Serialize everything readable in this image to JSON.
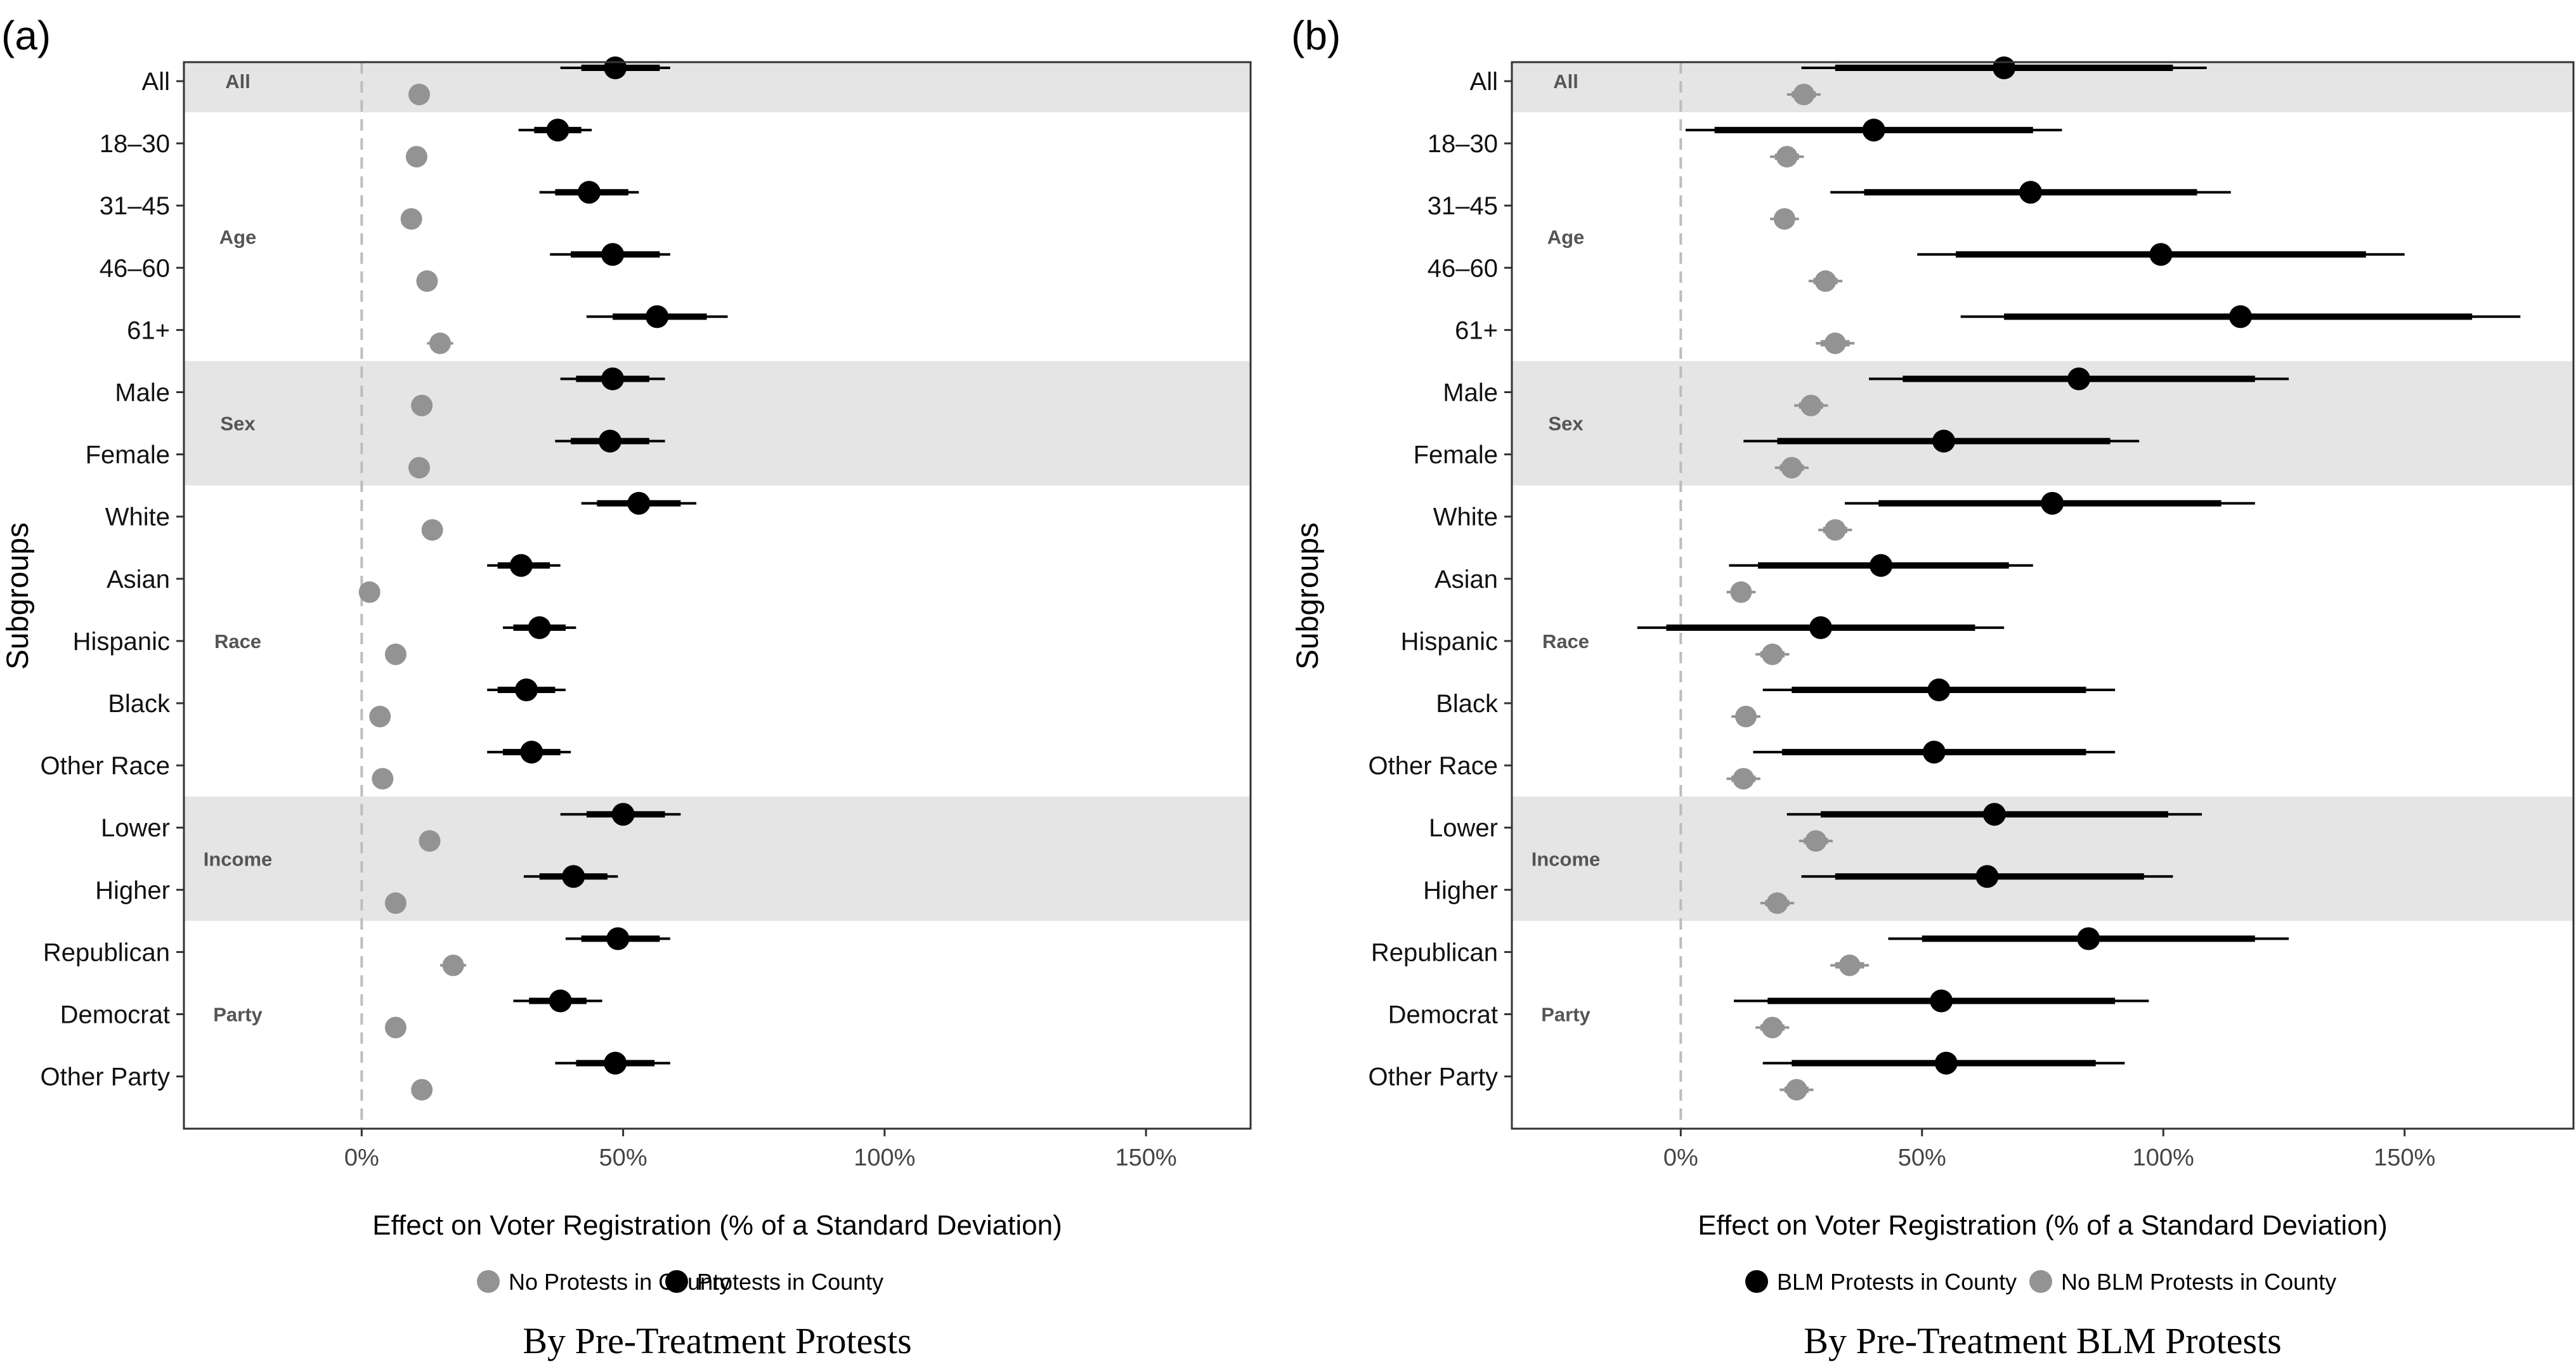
{
  "colors": {
    "protest": "#000000",
    "no_protest": "#939393",
    "band": "#e5e5e5",
    "zero_line": "#bdbdbd"
  },
  "categories": [
    "All",
    "18–30",
    "31–45",
    "46–60",
    "61+",
    "Male",
    "Female",
    "White",
    "Asian",
    "Hispanic",
    "Black",
    "Other Race",
    "Lower",
    "Higher",
    "Republican",
    "Democrat",
    "Other Party"
  ],
  "groups": [
    {
      "label": "All",
      "rows": [
        0,
        0
      ],
      "shaded": true
    },
    {
      "label": "Age",
      "rows": [
        1,
        4
      ],
      "shaded": false
    },
    {
      "label": "Sex",
      "rows": [
        5,
        6
      ],
      "shaded": true
    },
    {
      "label": "Race",
      "rows": [
        7,
        11
      ],
      "shaded": false
    },
    {
      "label": "Income",
      "rows": [
        12,
        13
      ],
      "shaded": true
    },
    {
      "label": "Party",
      "rows": [
        14,
        16
      ],
      "shaded": false
    }
  ],
  "chart_data": [
    {
      "type": "scatter",
      "panel_tag": "(a)",
      "subtitle": "By Pre-Treatment Protests",
      "xlabel": "Effect on Voter Registration (% of a Standard Deviation)",
      "ylabel": "Subgroups",
      "xlim": [
        -34,
        170
      ],
      "xticks": [
        0,
        50,
        100,
        150
      ],
      "xtick_labels": [
        "0%",
        "50%",
        "100%",
        "150%"
      ],
      "legend": [
        {
          "label": "No Protests in County",
          "series": "no_protest"
        },
        {
          "label": "Protests in County",
          "series": "protest"
        }
      ],
      "series": [
        {
          "key": "protest",
          "name": "Protests in County",
          "points": [
            {
              "est": 48.5,
              "ci90": [
                42,
                57
              ],
              "ci95": [
                38,
                59
              ]
            },
            {
              "est": 37.5,
              "ci90": [
                33,
                42
              ],
              "ci95": [
                30,
                44
              ]
            },
            {
              "est": 43.5,
              "ci90": [
                37,
                51
              ],
              "ci95": [
                34,
                53
              ]
            },
            {
              "est": 48,
              "ci90": [
                40,
                57
              ],
              "ci95": [
                36,
                59
              ]
            },
            {
              "est": 56.5,
              "ci90": [
                48,
                66
              ],
              "ci95": [
                43,
                70
              ]
            },
            {
              "est": 48,
              "ci90": [
                41,
                55
              ],
              "ci95": [
                38,
                58
              ]
            },
            {
              "est": 47.5,
              "ci90": [
                40,
                55
              ],
              "ci95": [
                37,
                58
              ]
            },
            {
              "est": 53,
              "ci90": [
                45,
                61
              ],
              "ci95": [
                42,
                64
              ]
            },
            {
              "est": 30.5,
              "ci90": [
                26,
                36
              ],
              "ci95": [
                24,
                38
              ]
            },
            {
              "est": 34,
              "ci90": [
                29,
                39
              ],
              "ci95": [
                27,
                41
              ]
            },
            {
              "est": 31.5,
              "ci90": [
                26,
                37
              ],
              "ci95": [
                24,
                39
              ]
            },
            {
              "est": 32.5,
              "ci90": [
                27,
                38
              ],
              "ci95": [
                24,
                40
              ]
            },
            {
              "est": 50,
              "ci90": [
                43,
                58
              ],
              "ci95": [
                38,
                61
              ]
            },
            {
              "est": 40.5,
              "ci90": [
                34,
                47
              ],
              "ci95": [
                31,
                49
              ]
            },
            {
              "est": 49,
              "ci90": [
                42,
                57
              ],
              "ci95": [
                39,
                59
              ]
            },
            {
              "est": 38,
              "ci90": [
                32,
                43
              ],
              "ci95": [
                29,
                46
              ]
            },
            {
              "est": 48.5,
              "ci90": [
                41,
                56
              ],
              "ci95": [
                37,
                59
              ]
            }
          ]
        },
        {
          "key": "no_protest",
          "name": "No Protests in County",
          "points": [
            {
              "est": 11,
              "ci90": [
                10,
                12
              ],
              "ci95": [
                9.5,
                12.5
              ]
            },
            {
              "est": 10.5,
              "ci90": [
                9.5,
                11.5
              ],
              "ci95": [
                9,
                12
              ]
            },
            {
              "est": 9.5,
              "ci90": [
                8.5,
                10.5
              ],
              "ci95": [
                8,
                11
              ]
            },
            {
              "est": 12.5,
              "ci90": [
                11.5,
                13.5
              ],
              "ci95": [
                11,
                14
              ]
            },
            {
              "est": 15,
              "ci90": [
                13.5,
                16.5
              ],
              "ci95": [
                12.5,
                17.5
              ]
            },
            {
              "est": 11.5,
              "ci90": [
                10.5,
                12.5
              ],
              "ci95": [
                10,
                13
              ]
            },
            {
              "est": 11,
              "ci90": [
                10,
                12
              ],
              "ci95": [
                9.5,
                12.5
              ]
            },
            {
              "est": 13.5,
              "ci90": [
                12.5,
                14.5
              ],
              "ci95": [
                12,
                15
              ]
            },
            {
              "est": 1.5,
              "ci90": [
                0.5,
                2.5
              ],
              "ci95": [
                0,
                3
              ]
            },
            {
              "est": 6.5,
              "ci90": [
                5.5,
                7.5
              ],
              "ci95": [
                5,
                8
              ]
            },
            {
              "est": 3.5,
              "ci90": [
                2.5,
                4.5
              ],
              "ci95": [
                2,
                5
              ]
            },
            {
              "est": 4,
              "ci90": [
                3,
                5
              ],
              "ci95": [
                2.5,
                5.5
              ]
            },
            {
              "est": 13,
              "ci90": [
                12,
                14
              ],
              "ci95": [
                11.5,
                14.5
              ]
            },
            {
              "est": 6.5,
              "ci90": [
                5.5,
                7.5
              ],
              "ci95": [
                5,
                8
              ]
            },
            {
              "est": 17.5,
              "ci90": [
                16,
                19
              ],
              "ci95": [
                15,
                20
              ]
            },
            {
              "est": 6.5,
              "ci90": [
                5.5,
                7.5
              ],
              "ci95": [
                5,
                8
              ]
            },
            {
              "est": 11.5,
              "ci90": [
                10.5,
                12.5
              ],
              "ci95": [
                10,
                13
              ]
            }
          ]
        }
      ]
    },
    {
      "type": "scatter",
      "panel_tag": "(b)",
      "subtitle": "By Pre-Treatment BLM Protests",
      "xlabel": "Effect on Voter Registration (% of a Standard Deviation)",
      "ylabel": "Subgroups",
      "xlim": [
        -35,
        185
      ],
      "xticks": [
        0,
        50,
        100,
        150
      ],
      "xtick_labels": [
        "0%",
        "50%",
        "100%",
        "150%"
      ],
      "legend": [
        {
          "label": "BLM Protests in County",
          "series": "protest"
        },
        {
          "label": "No BLM Protests in County",
          "series": "no_protest"
        }
      ],
      "series": [
        {
          "key": "protest",
          "name": "BLM Protests in County",
          "points": [
            {
              "est": 67,
              "ci90": [
                32,
                102
              ],
              "ci95": [
                25,
                109
              ]
            },
            {
              "est": 40,
              "ci90": [
                7,
                73
              ],
              "ci95": [
                1,
                79
              ]
            },
            {
              "est": 72.5,
              "ci90": [
                38,
                107
              ],
              "ci95": [
                31,
                114
              ]
            },
            {
              "est": 99.5,
              "ci90": [
                57,
                142
              ],
              "ci95": [
                49,
                150
              ]
            },
            {
              "est": 116,
              "ci90": [
                67,
                164
              ],
              "ci95": [
                58,
                174
              ]
            },
            {
              "est": 82.5,
              "ci90": [
                46,
                119
              ],
              "ci95": [
                39,
                126
              ]
            },
            {
              "est": 54.5,
              "ci90": [
                20,
                89
              ],
              "ci95": [
                13,
                95
              ]
            },
            {
              "est": 77,
              "ci90": [
                41,
                112
              ],
              "ci95": [
                34,
                119
              ]
            },
            {
              "est": 41.5,
              "ci90": [
                16,
                68
              ],
              "ci95": [
                10,
                73
              ]
            },
            {
              "est": 29,
              "ci90": [
                -3,
                61
              ],
              "ci95": [
                -9,
                67
              ]
            },
            {
              "est": 53.5,
              "ci90": [
                23,
                84
              ],
              "ci95": [
                17,
                90
              ]
            },
            {
              "est": 52.5,
              "ci90": [
                21,
                84
              ],
              "ci95": [
                15,
                90
              ]
            },
            {
              "est": 65,
              "ci90": [
                29,
                101
              ],
              "ci95": [
                22,
                108
              ]
            },
            {
              "est": 63.5,
              "ci90": [
                32,
                96
              ],
              "ci95": [
                25,
                102
              ]
            },
            {
              "est": 84.5,
              "ci90": [
                50,
                119
              ],
              "ci95": [
                43,
                126
              ]
            },
            {
              "est": 54,
              "ci90": [
                18,
                90
              ],
              "ci95": [
                11,
                97
              ]
            },
            {
              "est": 55,
              "ci90": [
                23,
                86
              ],
              "ci95": [
                17,
                92
              ]
            }
          ]
        },
        {
          "key": "no_protest",
          "name": "No BLM Protests in County",
          "points": [
            {
              "est": 25.5,
              "ci90": [
                23,
                28
              ],
              "ci95": [
                22,
                29
              ]
            },
            {
              "est": 22,
              "ci90": [
                19.5,
                24.5
              ],
              "ci95": [
                18.5,
                25.5
              ]
            },
            {
              "est": 21.5,
              "ci90": [
                19.5,
                23.5
              ],
              "ci95": [
                18.5,
                24.5
              ]
            },
            {
              "est": 30,
              "ci90": [
                27.5,
                32.5
              ],
              "ci95": [
                26.5,
                33.5
              ]
            },
            {
              "est": 32,
              "ci90": [
                29,
                35
              ],
              "ci95": [
                28,
                36
              ]
            },
            {
              "est": 27,
              "ci90": [
                24.5,
                29.5
              ],
              "ci95": [
                23.5,
                30.5
              ]
            },
            {
              "est": 23,
              "ci90": [
                20.5,
                25.5
              ],
              "ci95": [
                19.5,
                26.5
              ]
            },
            {
              "est": 32,
              "ci90": [
                29.5,
                34.5
              ],
              "ci95": [
                28.5,
                35.5
              ]
            },
            {
              "est": 12.5,
              "ci90": [
                10.5,
                14.5
              ],
              "ci95": [
                9.5,
                15.5
              ]
            },
            {
              "est": 19,
              "ci90": [
                16.5,
                21.5
              ],
              "ci95": [
                15.5,
                22.5
              ]
            },
            {
              "est": 13.5,
              "ci90": [
                11.5,
                15.5
              ],
              "ci95": [
                10.5,
                16.5
              ]
            },
            {
              "est": 13,
              "ci90": [
                10.5,
                15.5
              ],
              "ci95": [
                9.5,
                16.5
              ]
            },
            {
              "est": 28,
              "ci90": [
                25.5,
                30.5
              ],
              "ci95": [
                24.5,
                31.5
              ]
            },
            {
              "est": 20,
              "ci90": [
                17.5,
                22.5
              ],
              "ci95": [
                16.5,
                23.5
              ]
            },
            {
              "est": 35,
              "ci90": [
                32,
                38
              ],
              "ci95": [
                31,
                39
              ]
            },
            {
              "est": 19,
              "ci90": [
                16.5,
                21.5
              ],
              "ci95": [
                15.5,
                22.5
              ]
            },
            {
              "est": 24,
              "ci90": [
                21.5,
                26.5
              ],
              "ci95": [
                20.5,
                27.5
              ]
            }
          ]
        }
      ]
    }
  ]
}
